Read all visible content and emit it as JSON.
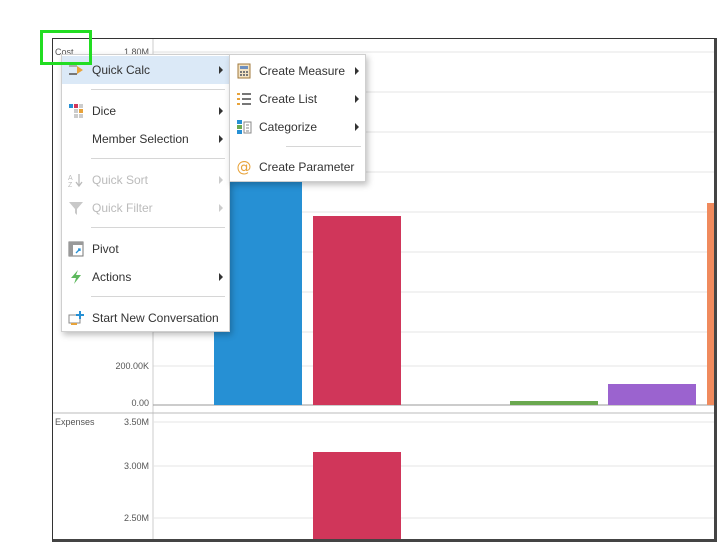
{
  "chart": {
    "top_measure": "Cost",
    "bottom_measure": "Expenses",
    "top_ticks": [
      "1.80M",
      "200.00K",
      "0.00"
    ],
    "bottom_ticks": [
      "3.50M",
      "3.00M",
      "2.50M"
    ],
    "colors": {
      "blue": "#2690d4",
      "red": "#d0365a",
      "green": "#6aa84f",
      "purple": "#9b63cf",
      "orange": "#f08a5d"
    }
  },
  "context_menu": {
    "items": [
      {
        "label": "Quick Calc",
        "icon": "quick-calc-icon",
        "submenu": true,
        "active": true,
        "disabled": false
      },
      {
        "label": "Dice",
        "icon": "dice-icon",
        "submenu": true,
        "active": false,
        "disabled": false
      },
      {
        "label": "Member Selection",
        "icon": "",
        "submenu": true,
        "active": false,
        "disabled": false
      },
      {
        "label": "Quick Sort",
        "icon": "sort-icon",
        "submenu": true,
        "active": false,
        "disabled": true
      },
      {
        "label": "Quick Filter",
        "icon": "filter-icon",
        "submenu": true,
        "active": false,
        "disabled": true
      },
      {
        "label": "Pivot",
        "icon": "pivot-icon",
        "submenu": false,
        "active": false,
        "disabled": false
      },
      {
        "label": "Actions",
        "icon": "actions-icon",
        "submenu": true,
        "active": false,
        "disabled": false
      },
      {
        "label": "Start New Conversation",
        "icon": "new-conversation-icon",
        "submenu": false,
        "active": false,
        "disabled": false
      }
    ]
  },
  "quick_calc_submenu": {
    "items": [
      {
        "label": "Create Measure",
        "icon": "calculator-icon",
        "submenu": true
      },
      {
        "label": "Create List",
        "icon": "list-icon",
        "submenu": true
      },
      {
        "label": "Categorize",
        "icon": "categorize-icon",
        "submenu": true
      },
      {
        "label": "Create Parameter",
        "icon": "at-sign-icon",
        "submenu": false
      }
    ]
  }
}
